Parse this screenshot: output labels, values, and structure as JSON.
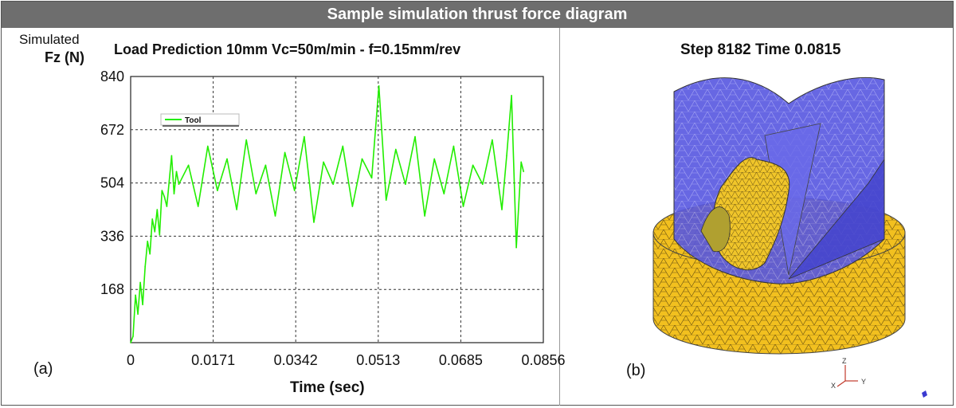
{
  "banner": {
    "title": "Sample simulation thrust force diagram"
  },
  "left_panel": {
    "panel_label": "(a)",
    "y_label_line1": "Simulated",
    "y_label_line2": "Fz (N)",
    "chart_title": "Load Prediction 10mm  Vc=50m/min - f=0.15mm/rev",
    "x_label": "Time (sec)"
  },
  "right_panel": {
    "panel_label": "(b)",
    "title": "Step 8182 Time 0.0815",
    "axes_triad": {
      "z": "Z",
      "x": "X",
      "y": "Y"
    }
  },
  "colors": {
    "series": "#22ee00",
    "mesh_blue": "#4d4dd9",
    "mesh_yellow": "#f2c01f"
  },
  "chart_data": {
    "type": "line",
    "title": "Load Prediction 10mm  Vc=50m/min - f=0.15mm/rev",
    "xlabel": "Time (sec)",
    "ylabel": "Simulated Fz (N)",
    "xlim": [
      0,
      0.0856
    ],
    "ylim": [
      0,
      840
    ],
    "x_ticks": [
      "0",
      "0.0171",
      "0.0342",
      "0.0513",
      "0.0685",
      "0.0856"
    ],
    "y_ticks": [
      "168",
      "336",
      "504",
      "672",
      "840"
    ],
    "grid": true,
    "legend_position": "top-left",
    "series": [
      {
        "name": "Tool",
        "x": [
          0,
          0.0005,
          0.001,
          0.0015,
          0.002,
          0.0025,
          0.003,
          0.0035,
          0.004,
          0.0045,
          0.005,
          0.0055,
          0.006,
          0.0065,
          0.007,
          0.0075,
          0.008,
          0.0085,
          0.009,
          0.0095,
          0.01,
          0.012,
          0.014,
          0.016,
          0.018,
          0.02,
          0.022,
          0.024,
          0.026,
          0.028,
          0.03,
          0.032,
          0.034,
          0.036,
          0.038,
          0.04,
          0.042,
          0.044,
          0.046,
          0.048,
          0.05,
          0.0515,
          0.053,
          0.055,
          0.057,
          0.059,
          0.061,
          0.063,
          0.065,
          0.067,
          0.069,
          0.071,
          0.073,
          0.075,
          0.077,
          0.078,
          0.079,
          0.08,
          0.081,
          0.0815
        ],
        "values": [
          0,
          20,
          150,
          90,
          190,
          120,
          240,
          320,
          280,
          390,
          350,
          420,
          340,
          480,
          460,
          430,
          510,
          590,
          470,
          540,
          500,
          560,
          430,
          620,
          480,
          580,
          420,
          640,
          470,
          560,
          400,
          600,
          480,
          650,
          380,
          570,
          500,
          620,
          430,
          580,
          520,
          810,
          450,
          610,
          500,
          650,
          400,
          580,
          470,
          620,
          430,
          560,
          500,
          640,
          420,
          590,
          780,
          300,
          570,
          540
        ]
      }
    ]
  }
}
